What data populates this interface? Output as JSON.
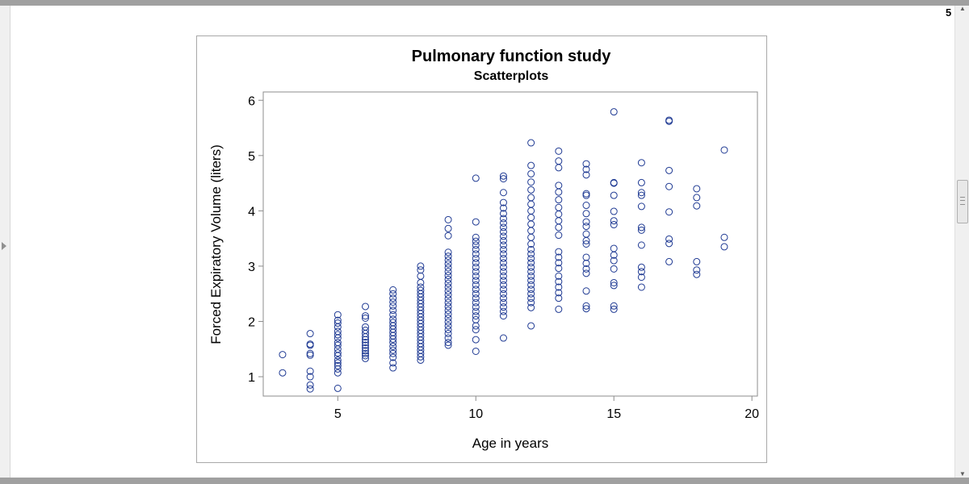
{
  "viewer": {
    "page_number": "5",
    "scroll_up_glyph": "▲",
    "scroll_down_glyph": "▼"
  },
  "chart_data": {
    "type": "scatter",
    "title": "Pulmonary function study",
    "subtitle": "Scatterplots",
    "xlabel": "Age in years",
    "ylabel": "Forced Expiratory Volume (liters)",
    "xlim": [
      2.3,
      20.2
    ],
    "ylim": [
      0.65,
      6.15
    ],
    "xticks": [
      5,
      10,
      15,
      20
    ],
    "yticks": [
      1,
      2,
      3,
      4,
      5,
      6
    ],
    "marker": "open-circle",
    "marker_color": "#1f3a93",
    "grid": false,
    "legend": "none",
    "series": [
      {
        "groups": [
          {
            "x": 3,
            "y": [
              1.07,
              1.4
            ]
          },
          {
            "x": 4,
            "y": [
              0.78,
              0.85,
              1.0,
              1.1,
              1.39,
              1.42,
              1.57,
              1.59,
              1.78
            ]
          },
          {
            "x": 5,
            "y": [
              0.79,
              1.07,
              1.14,
              1.2,
              1.25,
              1.3,
              1.38,
              1.43,
              1.5,
              1.57,
              1.62,
              1.7,
              1.76,
              1.82,
              1.9,
              1.97,
              2.02,
              2.12
            ]
          },
          {
            "x": 6,
            "y": [
              1.33,
              1.38,
              1.42,
              1.47,
              1.52,
              1.57,
              1.62,
              1.67,
              1.72,
              1.78,
              1.84,
              1.9,
              2.06,
              2.1,
              2.27
            ]
          },
          {
            "x": 7,
            "y": [
              1.16,
              1.25,
              1.35,
              1.42,
              1.48,
              1.55,
              1.62,
              1.68,
              1.74,
              1.8,
              1.86,
              1.92,
              1.98,
              2.04,
              2.12,
              2.2,
              2.28,
              2.35,
              2.42,
              2.5,
              2.57
            ]
          },
          {
            "x": 8,
            "y": [
              1.3,
              1.36,
              1.42,
              1.48,
              1.54,
              1.6,
              1.66,
              1.72,
              1.78,
              1.84,
              1.9,
              1.96,
              2.02,
              2.08,
              2.14,
              2.2,
              2.26,
              2.32,
              2.38,
              2.44,
              2.5,
              2.56,
              2.62,
              2.7,
              2.82,
              2.93,
              3.0
            ]
          },
          {
            "x": 9,
            "y": [
              1.57,
              1.62,
              1.7,
              1.78,
              1.85,
              1.92,
              1.99,
              2.06,
              2.13,
              2.2,
              2.27,
              2.34,
              2.41,
              2.48,
              2.55,
              2.62,
              2.69,
              2.76,
              2.83,
              2.9,
              2.97,
              3.04,
              3.11,
              3.18,
              3.25,
              3.55,
              3.68,
              3.84
            ]
          },
          {
            "x": 10,
            "y": [
              1.46,
              1.67,
              1.85,
              1.92,
              2.03,
              2.1,
              2.18,
              2.26,
              2.34,
              2.42,
              2.5,
              2.58,
              2.66,
              2.74,
              2.82,
              2.9,
              2.98,
              3.06,
              3.14,
              3.22,
              3.3,
              3.38,
              3.45,
              3.52,
              3.8,
              4.59
            ]
          },
          {
            "x": 11,
            "y": [
              1.7,
              2.1,
              2.18,
              2.26,
              2.34,
              2.42,
              2.5,
              2.58,
              2.66,
              2.74,
              2.82,
              2.9,
              2.98,
              3.06,
              3.14,
              3.22,
              3.3,
              3.38,
              3.46,
              3.54,
              3.62,
              3.7,
              3.78,
              3.86,
              3.95,
              4.05,
              4.15,
              4.33,
              4.58,
              4.63
            ]
          },
          {
            "x": 12,
            "y": [
              1.92,
              2.25,
              2.34,
              2.42,
              2.5,
              2.58,
              2.66,
              2.74,
              2.82,
              2.9,
              2.98,
              3.06,
              3.14,
              3.22,
              3.3,
              3.4,
              3.52,
              3.64,
              3.76,
              3.88,
              4.0,
              4.12,
              4.24,
              4.38,
              4.52,
              4.67,
              4.82,
              5.23
            ]
          },
          {
            "x": 13,
            "y": [
              2.22,
              2.42,
              2.52,
              2.62,
              2.72,
              2.82,
              2.96,
              3.06,
              3.16,
              3.26,
              3.56,
              3.7,
              3.82,
              3.94,
              4.06,
              4.2,
              4.34,
              4.46,
              4.78,
              4.9,
              5.08
            ]
          },
          {
            "x": 14,
            "y": [
              2.23,
              2.28,
              2.55,
              2.87,
              2.95,
              3.05,
              3.16,
              3.4,
              3.46,
              3.58,
              3.72,
              3.8,
              3.95,
              4.1,
              4.28,
              4.31,
              4.65,
              4.75,
              4.85
            ]
          },
          {
            "x": 15,
            "y": [
              2.22,
              2.28,
              2.65,
              2.7,
              2.95,
              3.1,
              3.2,
              3.32,
              3.75,
              3.82,
              3.99,
              4.28,
              4.5,
              4.51,
              5.79
            ]
          },
          {
            "x": 16,
            "y": [
              2.62,
              2.8,
              2.9,
              2.98,
              3.38,
              3.65,
              3.7,
              4.08,
              4.28,
              4.33,
              4.51,
              4.87
            ]
          },
          {
            "x": 17,
            "y": [
              3.08,
              3.41,
              3.49,
              3.98,
              4.44,
              4.73,
              5.62,
              5.64
            ]
          },
          {
            "x": 18,
            "y": [
              2.85,
              2.93,
              3.08,
              4.09,
              4.24,
              4.4
            ]
          },
          {
            "x": 19,
            "y": [
              3.35,
              3.52,
              5.1
            ]
          }
        ]
      }
    ]
  }
}
